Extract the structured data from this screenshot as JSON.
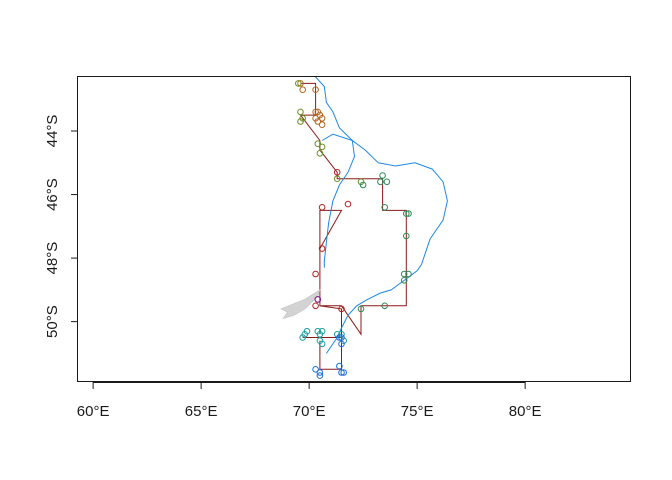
{
  "chart_data": {
    "type": "scatter",
    "title": "",
    "xlabel": "",
    "ylabel": "",
    "xlim": [
      59.3,
      84.9
    ],
    "ylim": [
      -51.9,
      -42.3
    ],
    "x_ticks": [
      {
        "value": 60,
        "label": "60°E"
      },
      {
        "value": 65,
        "label": "65°E"
      },
      {
        "value": 70,
        "label": "70°E"
      },
      {
        "value": 75,
        "label": "75°E"
      },
      {
        "value": 80,
        "label": "80°E"
      }
    ],
    "y_ticks": [
      {
        "value": -44,
        "label": "44°S"
      },
      {
        "value": -46,
        "label": "46°S"
      },
      {
        "value": -48,
        "label": "48°S"
      },
      {
        "value": -50,
        "label": "50°S"
      }
    ],
    "colors": {
      "track": "#8b1a1a",
      "contour": "#1e88e5",
      "land": "#d3d3d3",
      "axis": "#1a1a1a"
    },
    "track": [
      [
        69.6,
        -42.5
      ],
      [
        70.3,
        -42.5
      ],
      [
        70.3,
        -43.5
      ],
      [
        69.6,
        -43.5
      ],
      [
        70.5,
        -44.3
      ],
      [
        70.5,
        -44.6
      ],
      [
        71.3,
        -45.3
      ],
      [
        71.3,
        -45.5
      ],
      [
        73.4,
        -45.5
      ],
      [
        73.4,
        -46.5
      ],
      [
        74.5,
        -46.5
      ],
      [
        74.5,
        -49.5
      ],
      [
        72.4,
        -49.5
      ],
      [
        72.4,
        -50.4
      ],
      [
        71.5,
        -49.5
      ],
      [
        70.5,
        -49.5
      ],
      [
        70.5,
        -47.7
      ],
      [
        71.5,
        -46.5
      ],
      [
        70.5,
        -46.5
      ],
      [
        70.5,
        -49.5
      ],
      [
        71.5,
        -49.6
      ],
      [
        71.5,
        -50.5
      ],
      [
        69.7,
        -50.5
      ],
      [
        70.5,
        -50.5
      ],
      [
        71.5,
        -50.5
      ],
      [
        71.5,
        -51.5
      ],
      [
        70.5,
        -51.5
      ],
      [
        70.5,
        -50.6
      ]
    ],
    "contour": [
      [
        69.9,
        -42.0
      ],
      [
        70.3,
        -42.3
      ],
      [
        70.7,
        -42.6
      ],
      [
        70.8,
        -43.1
      ],
      [
        71.1,
        -43.4
      ],
      [
        71.4,
        -43.9
      ],
      [
        72.0,
        -44.3
      ],
      [
        72.6,
        -44.6
      ],
      [
        73.2,
        -45.0
      ],
      [
        74.0,
        -45.1
      ],
      [
        74.9,
        -45.0
      ],
      [
        75.7,
        -45.2
      ],
      [
        76.2,
        -45.6
      ],
      [
        76.4,
        -46.2
      ],
      [
        76.2,
        -46.8
      ],
      [
        75.9,
        -47.1
      ],
      [
        75.6,
        -47.4
      ],
      [
        75.4,
        -47.8
      ],
      [
        75.2,
        -48.2
      ],
      [
        75.0,
        -48.4
      ],
      [
        74.6,
        -48.6
      ],
      [
        74.2,
        -48.8
      ],
      [
        73.8,
        -49.0
      ],
      [
        73.3,
        -49.1
      ],
      [
        72.7,
        -49.3
      ],
      [
        72.2,
        -49.5
      ],
      [
        71.8,
        -49.8
      ],
      [
        71.5,
        -50.2
      ],
      [
        71.3,
        -50.5
      ],
      [
        71.0,
        -50.8
      ],
      [
        70.8,
        -51.0
      ]
    ],
    "contour_branch": [
      [
        70.6,
        -44.3
      ],
      [
        71.1,
        -44.1
      ],
      [
        72.0,
        -44.3
      ],
      [
        72.1,
        -44.8
      ],
      [
        71.8,
        -45.3
      ],
      [
        71.4,
        -45.7
      ],
      [
        71.1,
        -46.2
      ],
      [
        70.9,
        -46.9
      ],
      [
        70.8,
        -47.5
      ],
      [
        70.7,
        -48.1
      ],
      [
        70.7,
        -48.3
      ]
    ],
    "land": [
      [
        68.7,
        -49.6
      ],
      [
        69.8,
        -49.3
      ],
      [
        70.5,
        -49.0
      ],
      [
        70.4,
        -49.2
      ],
      [
        69.8,
        -49.6
      ],
      [
        69.3,
        -49.8
      ],
      [
        68.8,
        -49.9
      ],
      [
        69.0,
        -49.7
      ]
    ],
    "series": [
      {
        "color": "#b5651d",
        "points": [
          [
            69.6,
            -42.5
          ],
          [
            69.7,
            -42.7
          ],
          [
            70.3,
            -42.7
          ],
          [
            70.3,
            -43.4
          ],
          [
            70.5,
            -43.5
          ],
          [
            70.6,
            -43.6
          ],
          [
            70.4,
            -43.7
          ],
          [
            70.6,
            -43.8
          ],
          [
            70.3,
            -43.6
          ],
          [
            70.4,
            -43.4
          ]
        ]
      },
      {
        "color": "#6b8e23",
        "points": [
          [
            69.5,
            -42.5
          ],
          [
            69.6,
            -43.4
          ],
          [
            69.6,
            -43.7
          ],
          [
            69.7,
            -43.6
          ],
          [
            70.4,
            -44.4
          ],
          [
            70.6,
            -44.5
          ],
          [
            70.5,
            -44.7
          ],
          [
            71.3,
            -45.5
          ],
          [
            72.4,
            -45.6
          ]
        ]
      },
      {
        "color": "#2e8b57",
        "points": [
          [
            72.5,
            -45.7
          ],
          [
            73.4,
            -45.4
          ],
          [
            73.3,
            -45.6
          ],
          [
            73.6,
            -45.6
          ],
          [
            73.5,
            -46.4
          ],
          [
            74.5,
            -46.6
          ],
          [
            74.6,
            -46.6
          ],
          [
            74.5,
            -47.3
          ],
          [
            74.4,
            -48.5
          ],
          [
            74.6,
            -48.5
          ],
          [
            74.4,
            -48.7
          ],
          [
            73.5,
            -49.5
          ],
          [
            72.4,
            -49.6
          ]
        ]
      },
      {
        "color": "#b22222",
        "points": [
          [
            71.3,
            -45.3
          ],
          [
            71.8,
            -46.3
          ],
          [
            70.6,
            -46.4
          ],
          [
            70.6,
            -47.7
          ],
          [
            70.3,
            -48.5
          ],
          [
            70.4,
            -49.3
          ],
          [
            70.3,
            -49.5
          ],
          [
            71.5,
            -49.6
          ]
        ]
      },
      {
        "color": "#1f9e9e",
        "points": [
          [
            69.8,
            -50.4
          ],
          [
            69.9,
            -50.3
          ],
          [
            69.7,
            -50.5
          ],
          [
            70.4,
            -50.3
          ],
          [
            70.5,
            -50.4
          ],
          [
            70.5,
            -50.6
          ],
          [
            70.6,
            -50.7
          ],
          [
            70.6,
            -50.3
          ],
          [
            71.3,
            -50.4
          ],
          [
            71.5,
            -50.4
          ],
          [
            71.6,
            -50.6
          ]
        ]
      },
      {
        "color": "#1e6fd9",
        "points": [
          [
            70.3,
            -51.5
          ],
          [
            70.5,
            -51.6
          ],
          [
            70.5,
            -51.7
          ],
          [
            71.4,
            -51.4
          ],
          [
            71.5,
            -51.6
          ],
          [
            71.6,
            -51.6
          ],
          [
            71.4,
            -50.5
          ],
          [
            71.5,
            -50.5
          ],
          [
            71.5,
            -50.7
          ]
        ]
      },
      {
        "color": "#7b1fa2",
        "points": [
          [
            70.4,
            -49.3
          ]
        ]
      }
    ]
  }
}
